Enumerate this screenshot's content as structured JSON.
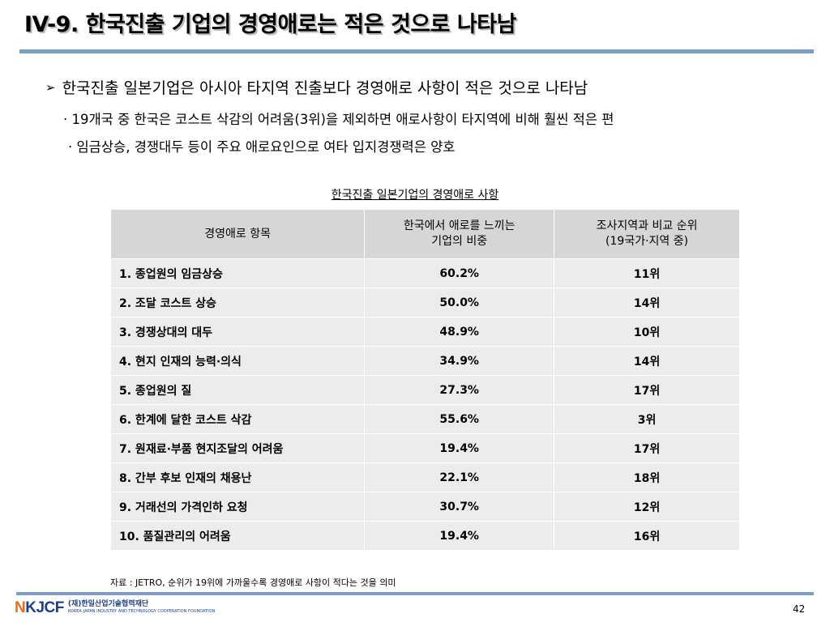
{
  "slide": {
    "title": "IV-9. 한국진출 기업의 경영애로는 적은 것으로 나타남",
    "bullet_arrow": "➢",
    "main_bullet": "한국진출 일본기업은 아시아 타지역 진출보다 경영애로 사항이 적은 것으로 나타남",
    "sub_bullets": [
      "· 19개국 중 한국은 코스트 삭감의 어려움(3위)을 제외하면 애로사항이 타지역에 비해 훨씬 적은 편",
      "· 임금상승, 경쟁대두 등이 주요 애로요인으로  여타 입지경쟁력은 양호"
    ],
    "table_caption": "한국진출 일본기업의 경영애로 사항",
    "table_headers": [
      "경영애로 항목",
      "한국에서 애로를 느끼는\n기업의 비중",
      "조사지역과 비교 순위\n(19국가·지역 중)"
    ],
    "rows": [
      {
        "item": "1. 종업원의 임금상승",
        "share": "60.2%",
        "rank": "11위"
      },
      {
        "item": "2. 조달 코스트 상승",
        "share": "50.0%",
        "rank": "14위"
      },
      {
        "item": "3. 경쟁상대의 대두",
        "share": "48.9%",
        "rank": "10위"
      },
      {
        "item": "4. 현지 인재의 능력·의식",
        "share": "34.9%",
        "rank": "14위"
      },
      {
        "item": "5. 종업원의 질",
        "share": "27.3%",
        "rank": "17위"
      },
      {
        "item": "6. 한계에 달한 코스트 삭감",
        "share": "55.6%",
        "rank": "3위"
      },
      {
        "item": "7. 원재료·부품 현지조달의 어려움",
        "share": "19.4%",
        "rank": "17위"
      },
      {
        "item": "8. 간부 후보 인재의 채용난",
        "share": "22.1%",
        "rank": "18위"
      },
      {
        "item": "9. 거래선의 가격인하 요청",
        "share": "30.7%",
        "rank": "12위"
      },
      {
        "item": "10. 품질관리의 어려움",
        "share": "19.4%",
        "rank": "16위"
      }
    ],
    "source_note": "자료 : JETRO, 순위가 19위에 가까울수록 경영애로 사항이 적다는 것을 의미",
    "logo": {
      "mark_n": "N",
      "mark_text": "KJCF",
      "org_korean": "(재)한일산업기술협력재단",
      "org_english": "KOREA-JAPAN INDUSTRY AND TECHNOLOGY COOPERATION FOUNDATION"
    },
    "page_number": "42"
  },
  "colors": {
    "rule": "#7a9ec4",
    "header_bg": "#d6d6d6",
    "row_bg": "#ececec",
    "logo_blue": "#1b3f86",
    "logo_orange": "#e26e1e"
  }
}
